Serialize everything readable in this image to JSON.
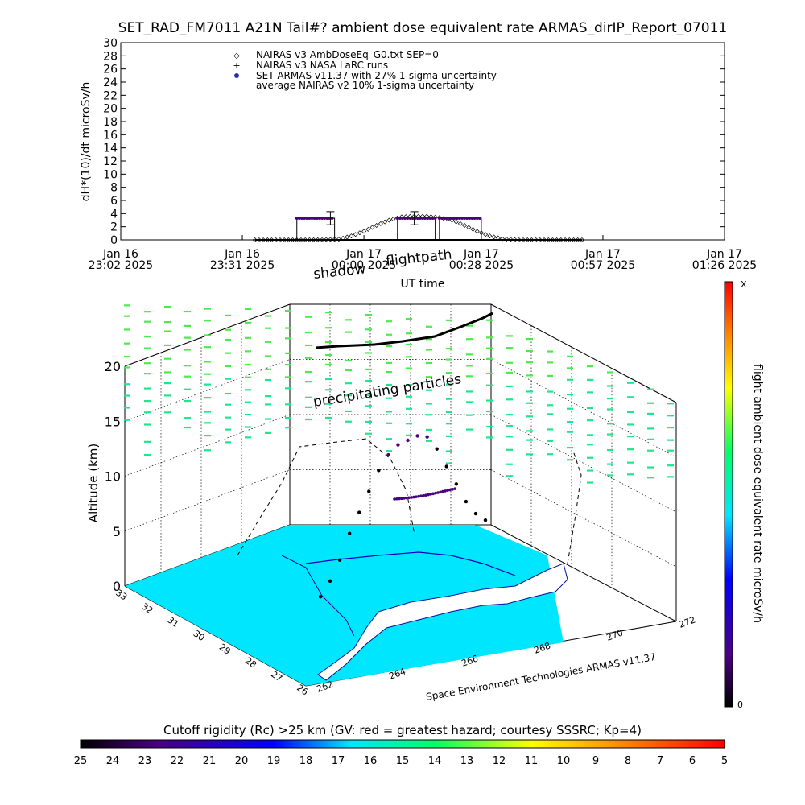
{
  "chart_data": [
    {
      "type": "line",
      "title": "SET_RAD_FM7011  A21N Tail#? ambient dose equivalent rate ARMAS_dirIP_Report_07011",
      "xlabel": "UT time",
      "ylabel": "dH*(10)/dt microSv/h",
      "ylim": [
        0,
        30
      ],
      "yticks": [
        0,
        2,
        4,
        6,
        8,
        10,
        12,
        14,
        16,
        18,
        20,
        22,
        24,
        26,
        28,
        30
      ],
      "xlim_minutes": [
        0,
        144
      ],
      "xticks": [
        {
          "line1": "Jan 16",
          "line2": "23:02 2025",
          "minute": 0
        },
        {
          "line1": "Jan 16",
          "line2": "23:31 2025",
          "minute": 29
        },
        {
          "line1": "Jan 17",
          "line2": "00:00 2025",
          "minute": 58
        },
        {
          "line1": "Jan 17",
          "line2": "00:28 2025",
          "minute": 86
        },
        {
          "line1": "Jan 17",
          "line2": "00:57 2025",
          "minute": 115
        },
        {
          "line1": "Jan 17",
          "line2": "01:26 2025",
          "minute": 144
        }
      ],
      "legend": [
        {
          "marker": "diamond",
          "label": "NAIRAS v3 AmbDoseEq_G0.txt SEP=0"
        },
        {
          "marker": "plus",
          "label": "NAIRAS v3 NASA LaRC runs"
        },
        {
          "marker": "dot",
          "label": "SET ARMAS v11.37 with 27% 1-sigma uncertainty"
        },
        {
          "marker": "none",
          "label": "average NAIRAS v2 10% 1-sigma uncertainty"
        }
      ],
      "legend_position": "top-left",
      "series": [
        {
          "name": "SET ARMAS v11.37 with 27% 1-sigma uncertainty",
          "color": "#4b0082",
          "points": [
            [
              42,
              0
            ],
            [
              42,
              3.3
            ],
            [
              51,
              3.3
            ],
            [
              51,
              0
            ],
            [
              66,
              0
            ],
            [
              66,
              3.3
            ],
            [
              75,
              3.3
            ],
            [
              75,
              0
            ],
            [
              76,
              0
            ],
            [
              76,
              3.3
            ],
            [
              86,
              3.3
            ],
            [
              86,
              0
            ]
          ],
          "errorbars": [
            [
              50,
              3.3,
              4.3,
              2.3
            ],
            [
              70,
              3.3,
              4.3,
              2.3
            ]
          ]
        },
        {
          "name": "NAIRAS v3 AmbDoseEq_G0.txt SEP=0",
          "color": "#000000",
          "points": [
            [
              32,
              0
            ],
            [
              42,
              0
            ],
            [
              48,
              0.02
            ],
            [
              52,
              0.1
            ],
            [
              55,
              0.6
            ],
            [
              58,
              1.3
            ],
            [
              61,
              2.2
            ],
            [
              64,
              3.0
            ],
            [
              67,
              3.5
            ],
            [
              70,
              3.6
            ],
            [
              73,
              3.6
            ],
            [
              76,
              3.4
            ],
            [
              79,
              3.0
            ],
            [
              82,
              2.2
            ],
            [
              85,
              1.3
            ],
            [
              88,
              0.6
            ],
            [
              91,
              0.15
            ],
            [
              95,
              0
            ],
            [
              110,
              0
            ]
          ]
        },
        {
          "name": "NAIRAS v3 NASA LaRC runs",
          "color": "#000000",
          "points": [
            [
              32,
              0
            ],
            [
              110,
              0
            ]
          ]
        }
      ]
    },
    {
      "type": "scatter",
      "title": "",
      "zlabel": "Altitude (km)",
      "zlim": [
        0,
        25
      ],
      "zticks": [
        0,
        5,
        10,
        15,
        20
      ],
      "lat_ticks": [
        "33",
        "32",
        "31",
        "30",
        "29",
        "28",
        "27",
        "26"
      ],
      "lon_ticks": [
        "262",
        "264",
        "266",
        "268",
        "270",
        "272"
      ],
      "annotations": [
        "shadow",
        "flightpath",
        "precipitating particles"
      ],
      "credit": "Space Environment Technologies ARMAS v11.37",
      "dose_colorbar": {
        "label": "flight ambient dose equivalent rate microSv/h",
        "max_label": "X",
        "min_label": "0"
      },
      "rigidity_colorbar": {
        "label": "Cutoff rigidity (Rc) >25 km (GV: red = greatest hazard; courtesy SSSRC; Kp=4)",
        "ticks": [
          "25",
          "24",
          "23",
          "22",
          "21",
          "20",
          "19",
          "18",
          "17",
          "16",
          "15",
          "14",
          "13",
          "12",
          "11",
          "10",
          "9",
          "8",
          "7",
          "6",
          "5"
        ]
      },
      "flight_path_altitude_km": [
        0.5,
        1.5,
        3,
        5,
        6.5,
        8,
        9.5,
        10.5,
        11,
        11,
        11,
        10.5,
        9,
        7,
        5,
        3,
        1.5,
        0.5
      ],
      "colors": {
        "ocean": "#00e6ff",
        "land": "#ffffff",
        "particles_high": "#4cea4c",
        "particles_low": "#1ee68c",
        "flight_cruise": "#4b0082",
        "flight_low": "#000000"
      }
    }
  ]
}
